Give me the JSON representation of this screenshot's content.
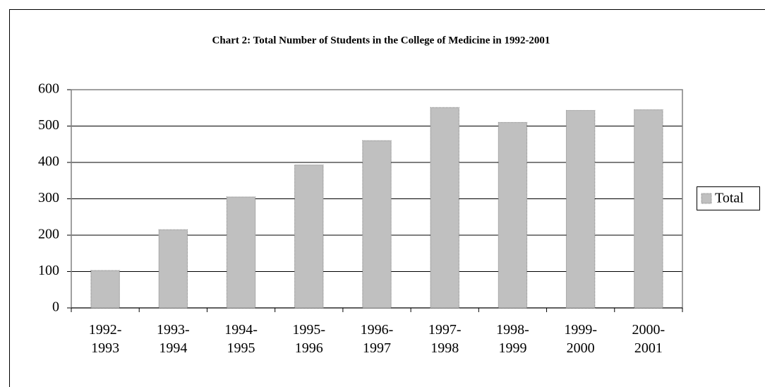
{
  "chart_data": {
    "type": "bar",
    "title": "Chart 2: Total Number of Students in the College of Medicine in 1992-2001",
    "categories": [
      "1992-1993",
      "1993-1994",
      "1994-1995",
      "1995-1996",
      "1996-1997",
      "1997-1998",
      "1998-1999",
      "1999-2000",
      "2000-2001"
    ],
    "series": [
      {
        "name": "Total",
        "color": "#c0c0c0",
        "values": [
          103,
          215,
          305,
          393,
          460,
          551,
          510,
          543,
          545
        ]
      }
    ],
    "ylim": [
      0,
      600
    ],
    "yticks": [
      0,
      100,
      200,
      300,
      400,
      500,
      600
    ],
    "grid": true,
    "legend": "right"
  }
}
